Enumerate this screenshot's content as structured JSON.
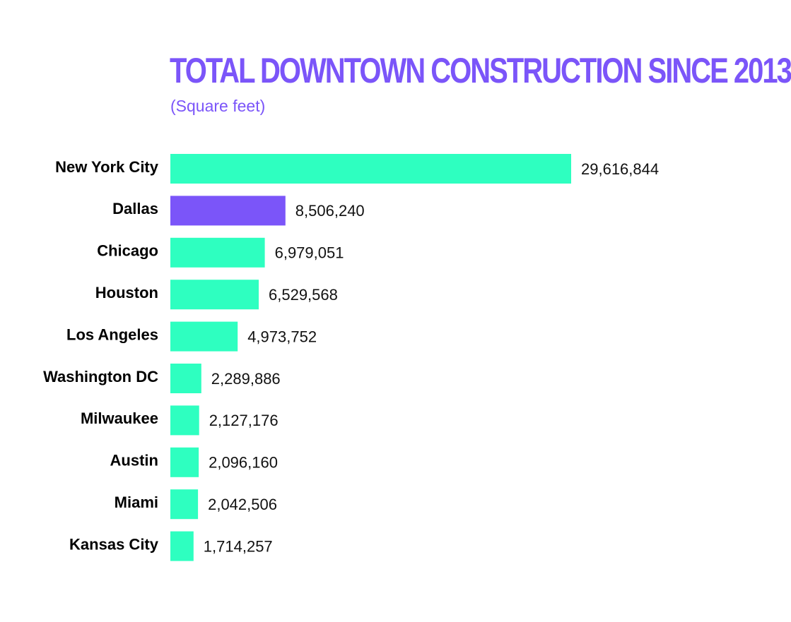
{
  "chart_data": {
    "type": "bar",
    "orientation": "horizontal",
    "title": "TOTAL DOWNTOWN CONSTRUCTION SINCE 2013",
    "subtitle": "(Square feet)",
    "categories": [
      "New York City",
      "Dallas",
      "Chicago",
      "Houston",
      "Los Angeles",
      "Washington DC",
      "Milwaukee",
      "Austin",
      "Miami",
      "Kansas City"
    ],
    "values": [
      29616844,
      8506240,
      6979051,
      6529568,
      4973752,
      2289886,
      2127176,
      2096160,
      2042506,
      1714257
    ],
    "value_labels": [
      "29,616,844",
      "8,506,240",
      "6,979,051",
      "6,529,568",
      "4,973,752",
      "2,289,886",
      "2,127,176",
      "2,096,160",
      "2,042,506",
      "1,714,257"
    ],
    "highlight_category": "Dallas",
    "xlim": [
      0,
      29616844
    ],
    "grid": false,
    "legend": "none"
  },
  "colors": {
    "bar": "#2effc0",
    "highlight": "#7b55f9",
    "title": "#7b55f9",
    "label": "#000000",
    "value_text": "#111111"
  }
}
